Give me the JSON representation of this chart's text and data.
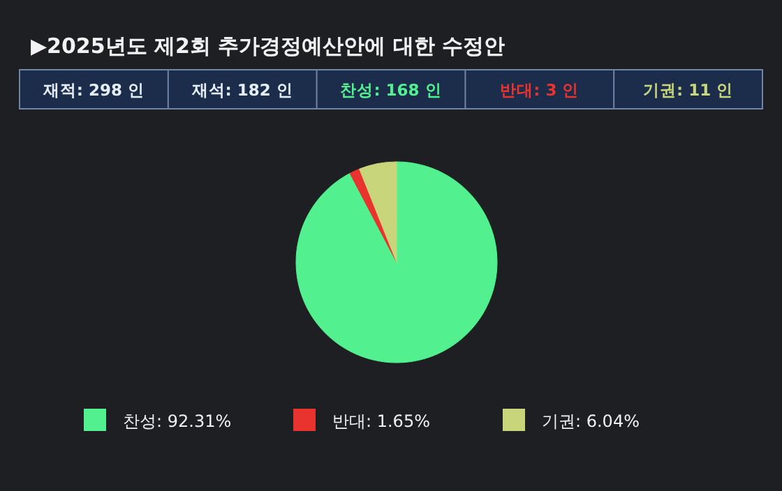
{
  "chart_data": {
    "type": "pie",
    "title": "▶2025년도 제2회 추가경정예산안에 대한 수정안",
    "annotations": [
      "재적: 298 인",
      "재석: 182 인",
      "찬성: 168 인",
      "반대:  3 인",
      "기권:  11 인"
    ],
    "categories": [
      "찬성: 92.31%",
      "반대: 1.65%",
      "기권: 6.04%"
    ],
    "values": [
      92.31,
      1.65,
      6.04
    ],
    "colors": [
      "#52f08f",
      "#e8332f",
      "#c9d57a"
    ],
    "legend": "bottom"
  }
}
